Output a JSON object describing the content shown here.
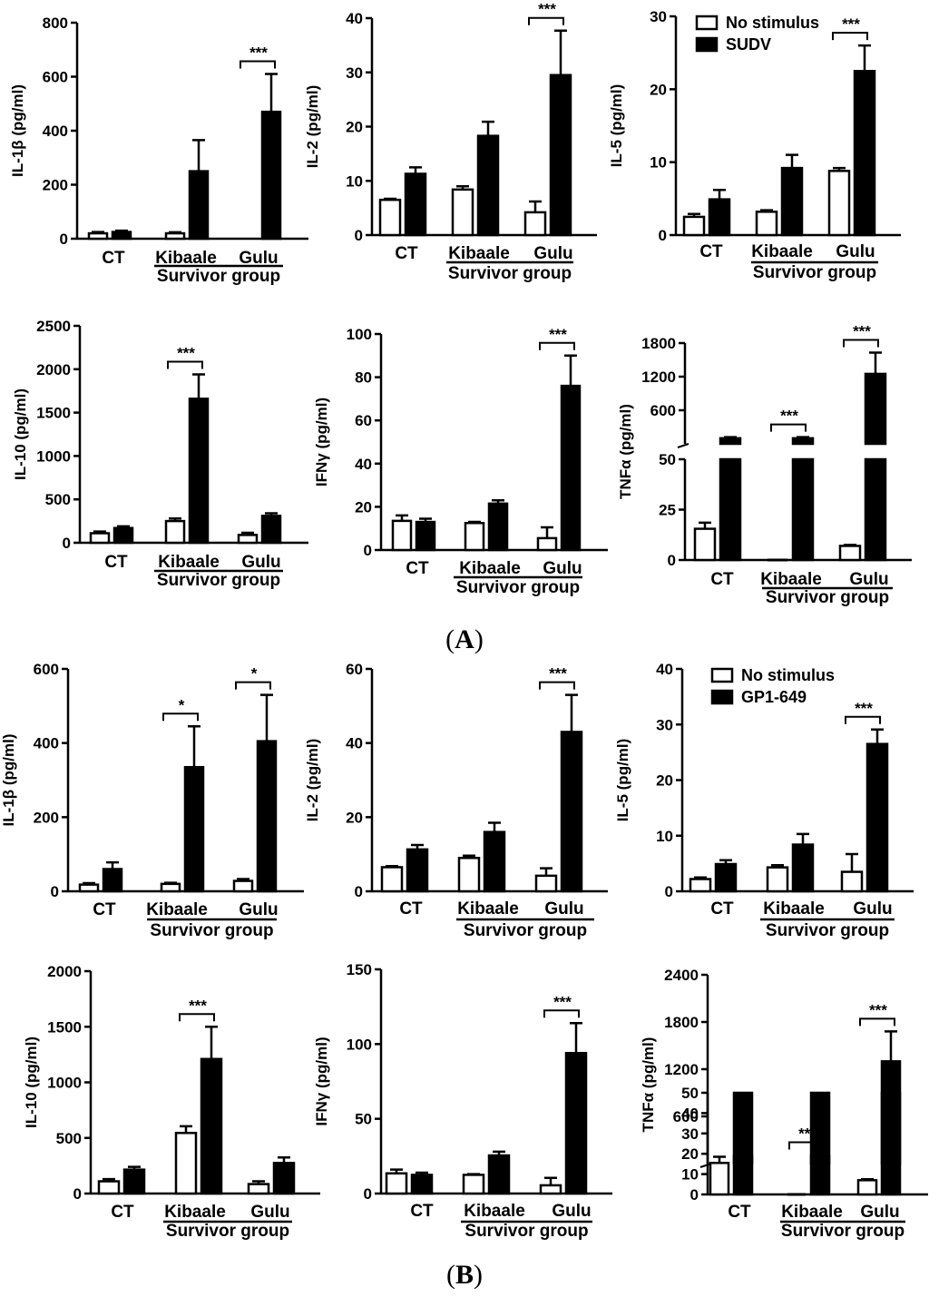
{
  "panel_labels": {
    "A": "A",
    "B": "B"
  },
  "legend_A": {
    "items": [
      "No stimulus",
      "SUDV"
    ]
  },
  "legend_B": {
    "items": [
      "No stimulus",
      "GP1-649"
    ]
  },
  "colors": {
    "no_stimulus": "#ffffff",
    "stimulated": "#000000",
    "stroke": "#000000"
  },
  "chart_data": [
    {
      "type": "bar",
      "panel": "A",
      "ylabel": "IL-1β (pg/ml)",
      "xlabel": "Survivor group",
      "categories": [
        "CT",
        "Kibaale",
        "Gulu"
      ],
      "ylim": [
        0,
        800
      ],
      "yticks": [
        0,
        200,
        400,
        600,
        800
      ],
      "series": [
        {
          "name": "No stimulus",
          "values": [
            20,
            20,
            0
          ],
          "errors": [
            5,
            4,
            0
          ]
        },
        {
          "name": "SUDV",
          "values": [
            25,
            250,
            470
          ],
          "errors": [
            5,
            115,
            140
          ]
        }
      ],
      "significance": [
        {
          "group": "Gulu",
          "label": "***"
        }
      ]
    },
    {
      "type": "bar",
      "panel": "A",
      "ylabel": "IL-2 (pg/ml)",
      "xlabel": "Survivor group",
      "categories": [
        "CT",
        "Kibaale",
        "Gulu"
      ],
      "ylim": [
        0,
        40
      ],
      "yticks": [
        0,
        10,
        20,
        30,
        40
      ],
      "series": [
        {
          "name": "No stimulus",
          "values": [
            6.5,
            8.4,
            4.2
          ],
          "errors": [
            0.2,
            0.6,
            2.0
          ]
        },
        {
          "name": "SUDV",
          "values": [
            11.3,
            18.3,
            29.5
          ],
          "errors": [
            1.2,
            2.6,
            8.2
          ]
        }
      ],
      "significance": [
        {
          "group": "Gulu",
          "label": "***"
        }
      ]
    },
    {
      "type": "bar",
      "panel": "A",
      "ylabel": "IL-5  (pg/ml)",
      "xlabel": "Survivor group",
      "categories": [
        "CT",
        "Kibaale",
        "Gulu"
      ],
      "ylim": [
        0,
        30
      ],
      "yticks": [
        0,
        10,
        20,
        30
      ],
      "series": [
        {
          "name": "No stimulus",
          "values": [
            2.5,
            3.2,
            8.8
          ],
          "errors": [
            0.4,
            0.2,
            0.4
          ]
        },
        {
          "name": "SUDV",
          "values": [
            4.9,
            9.2,
            22.5
          ],
          "errors": [
            1.3,
            1.8,
            3.5
          ]
        }
      ],
      "significance": [
        {
          "group": "Gulu",
          "label": "***"
        }
      ]
    },
    {
      "type": "bar",
      "panel": "A",
      "ylabel": "IL-10 (pg/ml)",
      "xlabel": "Survivor group",
      "categories": [
        "CT",
        "Kibaale",
        "Gulu"
      ],
      "ylim": [
        0,
        2500
      ],
      "yticks": [
        0,
        500,
        1000,
        1500,
        2000,
        2500
      ],
      "series": [
        {
          "name": "No stimulus",
          "values": [
            110,
            250,
            90
          ],
          "errors": [
            20,
            30,
            25
          ]
        },
        {
          "name": "SUDV",
          "values": [
            170,
            1660,
            310
          ],
          "errors": [
            20,
            280,
            30
          ]
        }
      ],
      "significance": [
        {
          "group": "Kibaale",
          "label": "***"
        }
      ]
    },
    {
      "type": "bar",
      "panel": "A",
      "ylabel": "IFNγ (pg/ml)",
      "xlabel": "Survivor group",
      "categories": [
        "CT",
        "Kibaale",
        "Gulu"
      ],
      "ylim": [
        0,
        100
      ],
      "yticks": [
        0,
        20,
        40,
        60,
        80,
        100
      ],
      "series": [
        {
          "name": "No stimulus",
          "values": [
            13.5,
            12.5,
            5.5
          ],
          "errors": [
            2.5,
            0.5,
            5.0
          ]
        },
        {
          "name": "SUDV",
          "values": [
            13,
            21.5,
            76
          ],
          "errors": [
            1.5,
            1.5,
            14
          ]
        }
      ],
      "significance": [
        {
          "group": "Gulu",
          "label": "***"
        }
      ]
    },
    {
      "type": "bar",
      "panel": "A",
      "ylabel": "TNFα (pg/ml)",
      "xlabel": "Survivor group",
      "categories": [
        "CT",
        "Kibaale",
        "Gulu"
      ],
      "broken_axis": {
        "low": [
          0,
          50
        ],
        "high": [
          0,
          1800
        ]
      },
      "yticks": [
        0,
        25,
        50,
        600,
        1200,
        1800
      ],
      "series": [
        {
          "name": "No stimulus",
          "values": [
            15.5,
            0,
            7
          ],
          "errors": [
            3,
            0,
            0.5
          ]
        },
        {
          "name": "SUDV",
          "values": [
            100,
            100,
            1250
          ],
          "errors": [
            20,
            20,
            380
          ]
        }
      ],
      "significance": [
        {
          "group": "Kibaale",
          "label": "***"
        },
        {
          "group": "Gulu",
          "label": "***"
        }
      ]
    },
    {
      "type": "bar",
      "panel": "B",
      "ylabel": "IL-1β (pg/ml)",
      "xlabel": "Survivor group",
      "categories": [
        "CT",
        "Kibaale",
        "Gulu"
      ],
      "ylim": [
        0,
        600
      ],
      "yticks": [
        0,
        200,
        400,
        600
      ],
      "series": [
        {
          "name": "No stimulus",
          "values": [
            18,
            20,
            28
          ],
          "errors": [
            4,
            3,
            5
          ]
        },
        {
          "name": "GP1-649",
          "values": [
            60,
            335,
            405
          ],
          "errors": [
            18,
            110,
            125
          ]
        }
      ],
      "significance": [
        {
          "group": "Kibaale",
          "label": "*"
        },
        {
          "group": "Gulu",
          "label": "*"
        }
      ]
    },
    {
      "type": "bar",
      "panel": "B",
      "ylabel": "IL-2 (pg/ml)",
      "xlabel": "Survivor group",
      "categories": [
        "CT",
        "Kibaale",
        "Gulu"
      ],
      "ylim": [
        0,
        60
      ],
      "yticks": [
        0,
        20,
        40,
        60
      ],
      "series": [
        {
          "name": "No stimulus",
          "values": [
            6.5,
            9,
            4.2
          ],
          "errors": [
            0.3,
            0.6,
            2.0
          ]
        },
        {
          "name": "GP1-649",
          "values": [
            11.3,
            16,
            43
          ],
          "errors": [
            1.2,
            2.5,
            10
          ]
        }
      ],
      "significance": [
        {
          "group": "Gulu",
          "label": "***"
        }
      ]
    },
    {
      "type": "bar",
      "panel": "B",
      "ylabel": "IL-5  (pg/ml)",
      "xlabel": "Survivor group",
      "categories": [
        "CT",
        "Kibaale",
        "Gulu"
      ],
      "ylim": [
        0,
        40
      ],
      "yticks": [
        0,
        10,
        20,
        30,
        40
      ],
      "series": [
        {
          "name": "No stimulus",
          "values": [
            2.2,
            4.3,
            3.5
          ],
          "errors": [
            0.3,
            0.4,
            3.2
          ]
        },
        {
          "name": "GP1-649",
          "values": [
            4.9,
            8.4,
            26.5
          ],
          "errors": [
            0.7,
            1.9,
            2.6
          ]
        }
      ],
      "significance": [
        {
          "group": "Gulu",
          "label": "***"
        }
      ]
    },
    {
      "type": "bar",
      "panel": "B",
      "ylabel": "IL-10 (pg/ml)",
      "xlabel": "Survivor group",
      "categories": [
        "CT",
        "Kibaale",
        "Gulu"
      ],
      "ylim": [
        0,
        2000
      ],
      "yticks": [
        0,
        500,
        1000,
        1500,
        2000
      ],
      "series": [
        {
          "name": "No stimulus",
          "values": [
            110,
            545,
            85
          ],
          "errors": [
            20,
            60,
            25
          ]
        },
        {
          "name": "GP1-649",
          "values": [
            215,
            1210,
            275
          ],
          "errors": [
            25,
            290,
            50
          ]
        }
      ],
      "significance": [
        {
          "group": "Kibaale",
          "label": "***"
        }
      ]
    },
    {
      "type": "bar",
      "panel": "B",
      "ylabel": "IFNγ (pg/ml)",
      "xlabel": "Survivor group",
      "categories": [
        "CT",
        "Kibaale",
        "Gulu"
      ],
      "ylim": [
        0,
        150
      ],
      "yticks": [
        0,
        50,
        100,
        150
      ],
      "series": [
        {
          "name": "No stimulus",
          "values": [
            13.5,
            12.5,
            5.5
          ],
          "errors": [
            2.5,
            0.5,
            5.0
          ]
        },
        {
          "name": "GP1-649",
          "values": [
            12.5,
            25.5,
            94
          ],
          "errors": [
            1.5,
            2.5,
            20
          ]
        }
      ],
      "significance": [
        {
          "group": "Gulu",
          "label": "***"
        }
      ]
    },
    {
      "type": "bar",
      "panel": "B",
      "ylabel": "TNFα (pg/ml)",
      "xlabel": "Survivor group",
      "categories": [
        "CT",
        "Kibaale",
        "Gulu"
      ],
      "broken_axis": {
        "low": [
          0,
          50
        ],
        "high": [
          0,
          2400
        ]
      },
      "yticks": [
        0,
        10,
        20,
        30,
        40,
        50,
        600,
        1200,
        1800,
        2400
      ],
      "series": [
        {
          "name": "No stimulus",
          "values": [
            15.5,
            0,
            7
          ],
          "errors": [
            3,
            0,
            0.5
          ]
        },
        {
          "name": "GP1-649",
          "values": [
            100,
            100,
            1300
          ],
          "errors": [
            10,
            10,
            380
          ]
        }
      ],
      "significance": [
        {
          "group": "Kibaale",
          "label": "***"
        },
        {
          "group": "Gulu",
          "label": "***"
        }
      ]
    }
  ]
}
